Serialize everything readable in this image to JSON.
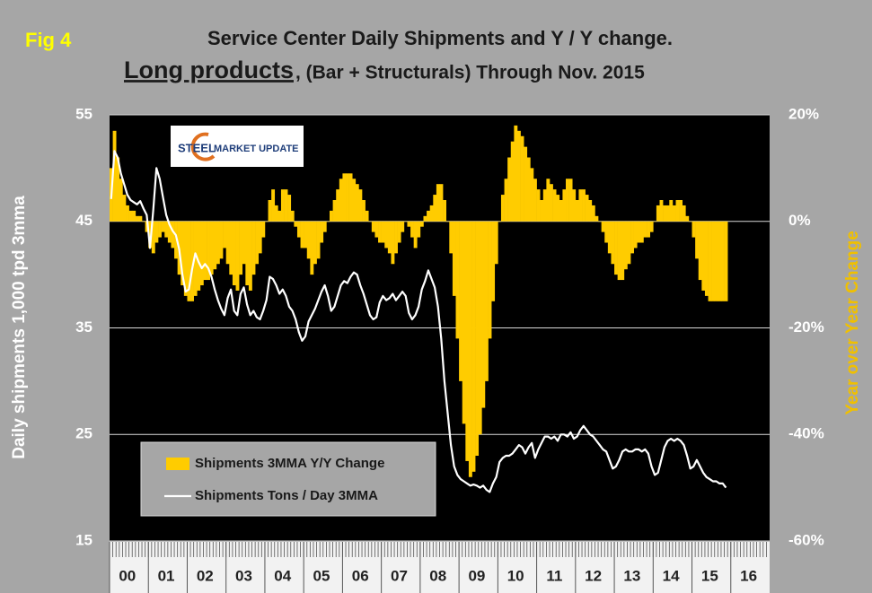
{
  "chart_data": {
    "type": "combo",
    "figure_label": "Fig 4",
    "title": "Service Center Daily Shipments and Y / Y change.",
    "title_emphasis": "Long products",
    "subtitle": ", (Bar + Structurals) Through Nov. 2015",
    "logo_text": [
      "STEEL",
      "MARKET UPDATE"
    ],
    "y_label": "Daily shipments 1,000 tpd 3mma",
    "y2_label": "Year over Year Change",
    "ylim": [
      15,
      55
    ],
    "yticks": [
      15,
      25,
      35,
      45,
      55
    ],
    "y2lim": [
      -60,
      20
    ],
    "y2ticks": [
      {
        "value": -60,
        "label": "-60%"
      },
      {
        "value": -40,
        "label": "-40%"
      },
      {
        "value": -20,
        "label": "-20%"
      },
      {
        "value": 0,
        "label": "0%"
      },
      {
        "value": 20,
        "label": "20%"
      }
    ],
    "grid": true,
    "legend_position": "lower left",
    "categories": [
      null,
      null,
      null,
      null,
      null,
      "00",
      null,
      null,
      null,
      null,
      null,
      null,
      null,
      null,
      null,
      null,
      null,
      "01",
      null,
      null,
      null,
      null,
      null,
      null,
      null,
      null,
      null,
      null,
      null,
      "02",
      null,
      null,
      null,
      null,
      null,
      null,
      null,
      null,
      null,
      null,
      null,
      "03",
      null,
      null,
      null,
      null,
      null,
      null,
      null,
      null,
      null,
      null,
      null,
      "04",
      null,
      null,
      null,
      null,
      null,
      null,
      null,
      null,
      null,
      null,
      null,
      "05",
      null,
      null,
      null,
      null,
      null,
      null,
      null,
      null,
      null,
      null,
      null,
      "06",
      null,
      null,
      null,
      null,
      null,
      null,
      null,
      null,
      null,
      null,
      null,
      "07",
      null,
      null,
      null,
      null,
      null,
      null,
      null,
      null,
      null,
      null,
      null,
      "08",
      null,
      null,
      null,
      null,
      null,
      null,
      null,
      null,
      null,
      null,
      null,
      "09",
      null,
      null,
      null,
      null,
      null,
      null,
      null,
      null,
      null,
      null,
      null,
      "10",
      null,
      null,
      null,
      null,
      null,
      null,
      null,
      null,
      null,
      null,
      null,
      "11",
      null,
      null,
      null,
      null,
      null,
      null,
      null,
      null,
      null,
      null,
      null,
      "12",
      null,
      null,
      null,
      null,
      null,
      null,
      null,
      null,
      null,
      null,
      null,
      "13",
      null,
      null,
      null,
      null,
      null,
      null,
      null,
      null,
      null,
      null,
      null,
      "14",
      null,
      null,
      null,
      null,
      null,
      null,
      null,
      null,
      null,
      null,
      null,
      "15",
      null,
      null,
      null,
      null,
      null,
      null,
      null,
      null,
      null,
      null,
      null,
      "16",
      null,
      null,
      null,
      null,
      null,
      null
    ],
    "series": [
      {
        "name": "Shipments 3MMA Y/Y Change",
        "type": "bar",
        "axis": "y2",
        "color": "#ffcc00",
        "values": [
          10,
          17,
          12,
          8,
          5,
          3,
          2,
          2,
          1,
          1,
          0,
          -2,
          -5,
          -6,
          -4,
          -3,
          -2,
          -3,
          -4,
          -5,
          -7,
          -10,
          -12,
          -14,
          -15,
          -15,
          -14,
          -13,
          -12,
          -11,
          -11,
          -10,
          -9,
          -8,
          -7,
          -5,
          -8,
          -10,
          -12,
          -13,
          -10,
          -8,
          -12,
          -13,
          -10,
          -8,
          -6,
          -3,
          0,
          4,
          6,
          3,
          2,
          6,
          6,
          5,
          2,
          -1,
          -3,
          -5,
          -5,
          -7,
          -10,
          -8,
          -7,
          -4,
          -2,
          0,
          2,
          4,
          6,
          8,
          9,
          9,
          9,
          8,
          7,
          6,
          4,
          2,
          0,
          -2,
          -3,
          -4,
          -4,
          -5,
          -6,
          -8,
          -6,
          -4,
          -2,
          0,
          -1,
          -3,
          -5,
          -3,
          -1,
          1,
          2,
          3,
          5,
          7,
          7,
          4,
          0,
          -6,
          -14,
          -22,
          -30,
          -38,
          -45,
          -48,
          -47,
          -44,
          -40,
          -35,
          -30,
          -22,
          -15,
          -8,
          0,
          5,
          8,
          12,
          15,
          18,
          17,
          16,
          14,
          12,
          10,
          8,
          6,
          4,
          6,
          8,
          7,
          6,
          5,
          4,
          6,
          8,
          8,
          6,
          4,
          6,
          6,
          5,
          4,
          3,
          1,
          0,
          -2,
          -4,
          -6,
          -8,
          -10,
          -11,
          -11,
          -9,
          -8,
          -6,
          -5,
          -4,
          -4,
          -3,
          -3,
          -2,
          0,
          3,
          4,
          3,
          3,
          4,
          3,
          4,
          4,
          3,
          1,
          0,
          -3,
          -7,
          -11,
          -13,
          -14,
          -15,
          -15,
          -15,
          -15,
          -15,
          -15,
          null,
          null,
          null,
          null,
          null,
          null,
          null,
          null,
          null,
          null,
          null,
          null,
          null
        ]
      },
      {
        "name": "Shipments Tons / Day 3MMA",
        "type": "line",
        "color": "#ffffff",
        "values": [
          47.1,
          51.6,
          51.0,
          49.5,
          48.5,
          47.5,
          47.0,
          46.8,
          46.6,
          46.9,
          46.2,
          45.6,
          42.5,
          46.0,
          50.0,
          49.0,
          47.3,
          45.6,
          44.7,
          44.1,
          43.7,
          42.4,
          40.0,
          38.4,
          38.6,
          40.5,
          42.0,
          41.2,
          40.6,
          41.0,
          40.6,
          39.8,
          38.6,
          37.6,
          36.8,
          36.2,
          37.8,
          38.6,
          36.6,
          36.2,
          38.2,
          38.8,
          37.2,
          36.2,
          36.6,
          36.0,
          35.8,
          36.6,
          37.6,
          39.8,
          39.6,
          39.0,
          38.2,
          38.6,
          38.0,
          37.0,
          36.6,
          35.8,
          34.6,
          33.8,
          34.2,
          35.6,
          36.2,
          36.8,
          37.6,
          38.4,
          39.0,
          38.0,
          36.6,
          37.0,
          38.0,
          39.0,
          39.4,
          39.2,
          39.8,
          40.2,
          40.0,
          39.0,
          38.2,
          37.2,
          36.2,
          35.8,
          36.0,
          37.4,
          38.0,
          37.6,
          37.8,
          38.2,
          37.6,
          38.0,
          38.4,
          38.0,
          36.4,
          35.8,
          36.2,
          37.0,
          38.6,
          39.4,
          40.4,
          39.6,
          38.8,
          37.0,
          34.0,
          30.0,
          27.0,
          24.0,
          22.0,
          21.2,
          20.8,
          20.6,
          20.4,
          20.2,
          20.3,
          20.2,
          20.0,
          20.2,
          19.8,
          19.6,
          20.4,
          21.0,
          22.4,
          22.8,
          23.0,
          23.0,
          23.2,
          23.6,
          24.0,
          23.8,
          23.2,
          23.8,
          24.2,
          22.8,
          23.6,
          24.2,
          24.8,
          24.8,
          24.6,
          24.8,
          24.4,
          25.0,
          25.0,
          24.8,
          25.2,
          24.6,
          24.8,
          25.4,
          25.8,
          25.4,
          25.0,
          24.8,
          24.4,
          24.0,
          23.6,
          23.4,
          22.6,
          21.8,
          22.0,
          22.6,
          23.4,
          23.6,
          23.4,
          23.4,
          23.6,
          23.6,
          23.4,
          23.6,
          23.2,
          22.0,
          21.2,
          21.4,
          22.6,
          23.8,
          24.4,
          24.6,
          24.4,
          24.6,
          24.4,
          24.0,
          23.0,
          21.8,
          22.0,
          22.6,
          22.0,
          21.4,
          21.0,
          20.8,
          20.6,
          20.6,
          20.4,
          20.4,
          20.0,
          null,
          null,
          null,
          null,
          null,
          null,
          null,
          null,
          null,
          null,
          null,
          null,
          null
        ]
      }
    ]
  }
}
